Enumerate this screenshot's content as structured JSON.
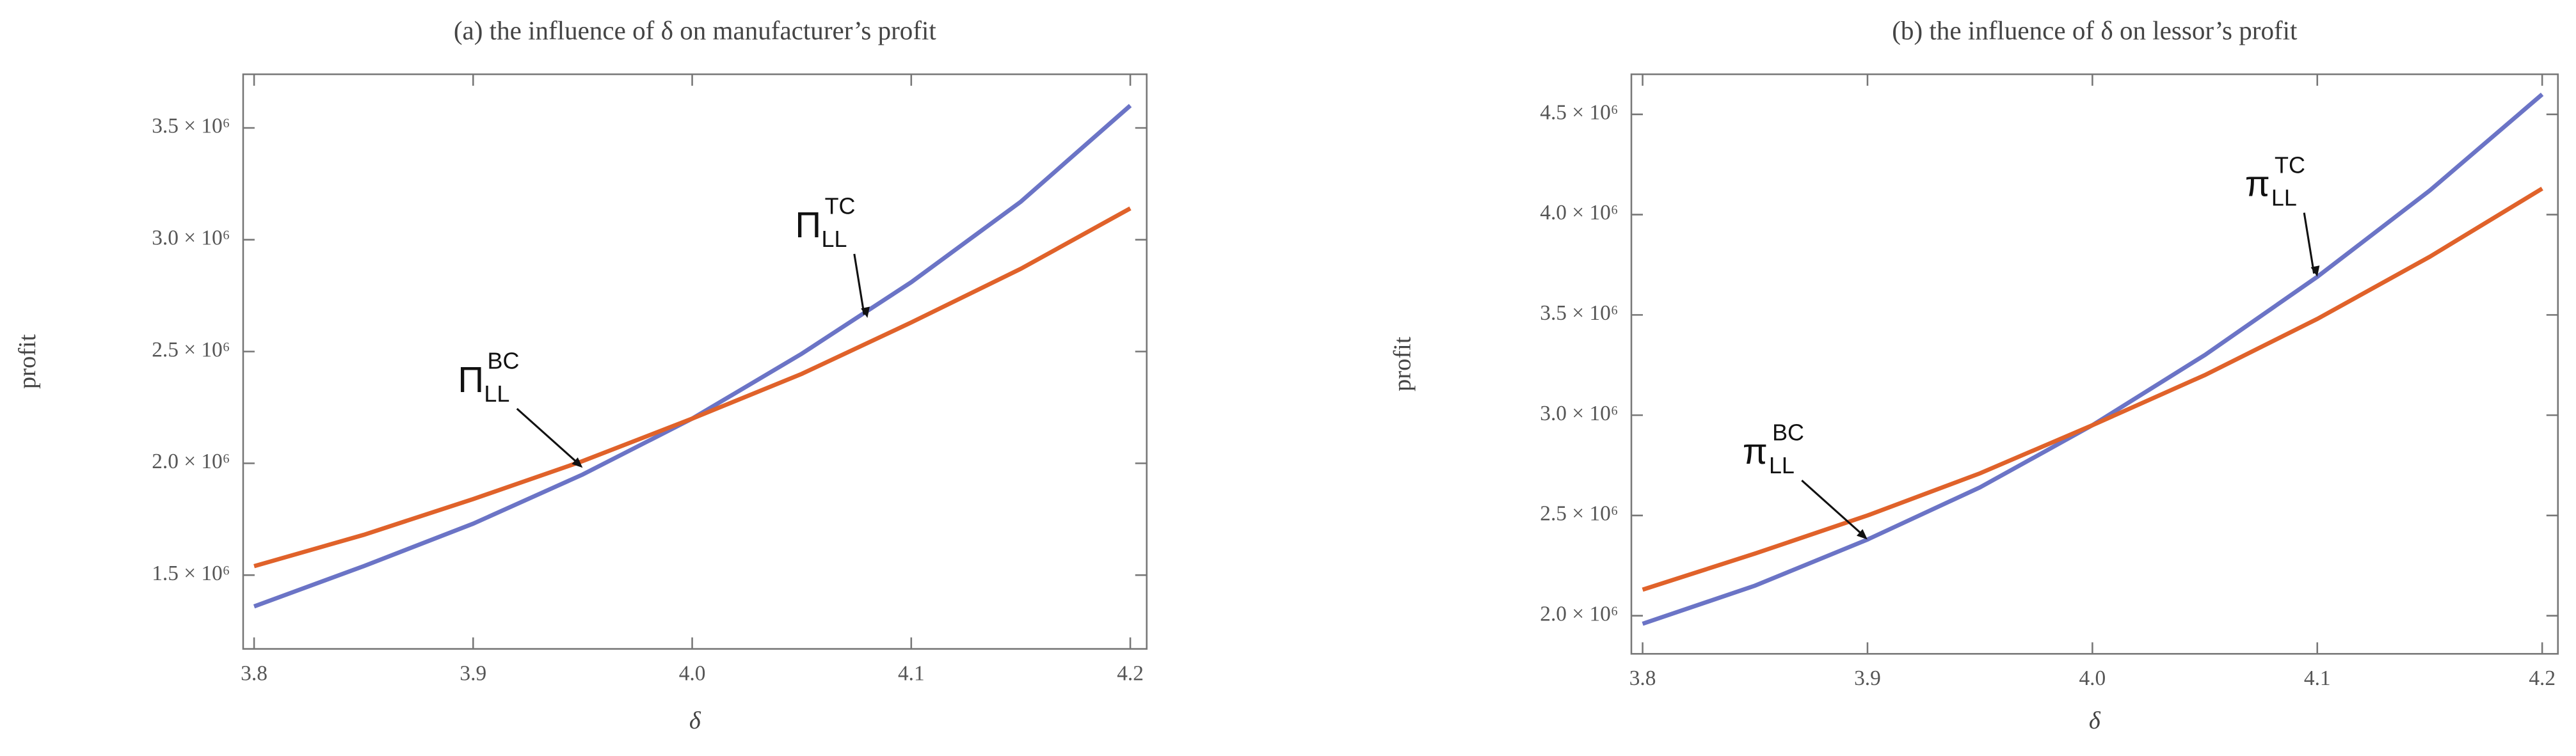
{
  "chart_data": [
    {
      "type": "line",
      "title": "(a) the influence of δ on manufacturer’s profit",
      "xlabel": "δ",
      "ylabel": "profit",
      "x": [
        3.8,
        3.85,
        3.9,
        3.95,
        4.0,
        4.05,
        4.1,
        4.15,
        4.2
      ],
      "series": [
        {
          "color": "#6b74c6",
          "values": [
            1360000,
            1540000,
            1730000,
            1950000,
            2200000,
            2490000,
            2810000,
            3170000,
            3600000
          ]
        },
        {
          "color": "#e0622a",
          "values": [
            1540000,
            1680000,
            1840000,
            2010000,
            2200000,
            2400000,
            2630000,
            2870000,
            3140000
          ]
        }
      ],
      "xlim": [
        3.795,
        4.2075
      ],
      "ylim": [
        1170000,
        3740000
      ],
      "xticks": [
        3.8,
        3.9,
        {
          "value": 4,
          "label": "4.0"
        },
        4.1,
        4.2
      ],
      "yticks": [
        {
          "value": 1500000,
          "label": "1.5 × 10⁶"
        },
        {
          "value": 2000000,
          "label": "2.0 × 10⁶"
        },
        {
          "value": 2500000,
          "label": "2.5 × 10⁶"
        },
        {
          "value": 3000000,
          "label": "3.0 × 10⁶"
        },
        {
          "value": 3500000,
          "label": "3.5 × 10⁶"
        }
      ],
      "annotations": [
        {
          "text": "Π",
          "sub": "LL",
          "sup": "TC",
          "x": 4.08,
          "y": 2650000
        },
        {
          "text": "Π",
          "sub": "LL",
          "sup": "BC",
          "x": 3.95,
          "y": 1980000
        }
      ]
    },
    {
      "type": "line",
      "title": "(b) the influence of δ on lessor’s profit",
      "xlabel": "δ",
      "ylabel": "profit",
      "x": [
        3.8,
        3.85,
        3.9,
        3.95,
        4.0,
        4.05,
        4.1,
        4.15,
        4.2
      ],
      "series": [
        {
          "color": "#6b74c6",
          "values": [
            1960000,
            2150000,
            2380000,
            2640000,
            2950000,
            3300000,
            3690000,
            4120000,
            4600000
          ]
        },
        {
          "color": "#e0622a",
          "values": [
            2130000,
            2310000,
            2500000,
            2710000,
            2950000,
            3200000,
            3480000,
            3790000,
            4130000
          ]
        }
      ],
      "xlim": [
        3.795,
        4.207
      ],
      "ylim": [
        1810000,
        4700000
      ],
      "xticks": [
        3.8,
        3.9,
        {
          "value": 4,
          "label": "4.0"
        },
        4.1,
        4.2
      ],
      "yticks": [
        {
          "value": 2000000,
          "label": "2.0 × 10⁶"
        },
        {
          "value": 2500000,
          "label": "2.5 × 10⁶"
        },
        {
          "value": 3000000,
          "label": "3.0 × 10⁶"
        },
        {
          "value": 3500000,
          "label": "3.5 × 10⁶"
        },
        {
          "value": 4000000,
          "label": "4.0 × 10⁶"
        },
        {
          "value": 4500000,
          "label": "4.5 × 10⁶"
        }
      ],
      "annotations": [
        {
          "text": "π",
          "sub": "LL",
          "sup": "TC",
          "x": 4.1,
          "y": 3690000
        },
        {
          "text": "π",
          "sub": "LL",
          "sup": "BC",
          "x": 3.9,
          "y": 2380000
        }
      ]
    }
  ]
}
